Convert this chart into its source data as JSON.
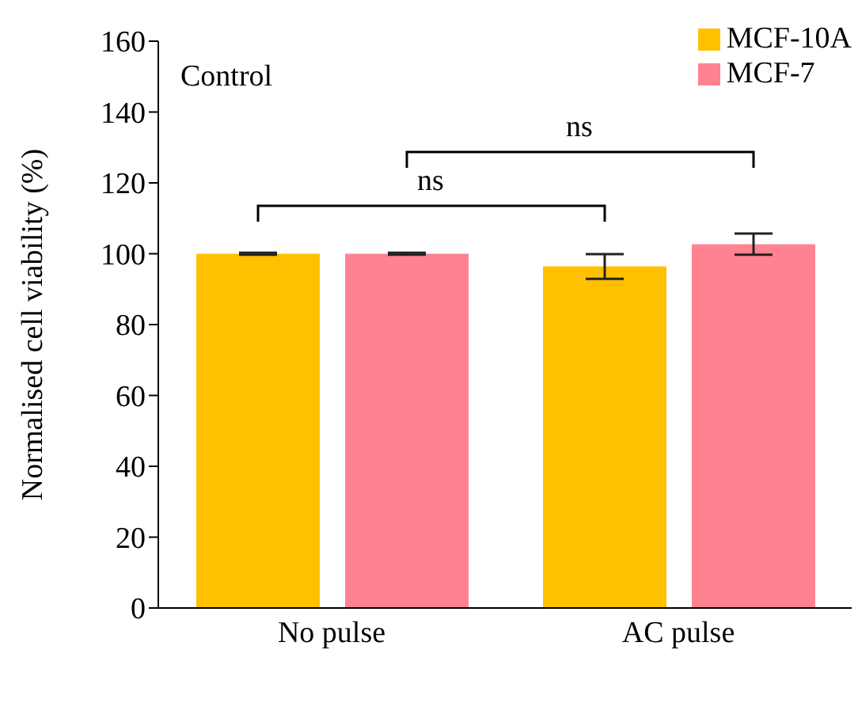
{
  "chart_data": {
    "type": "bar",
    "categories": [
      "No pulse",
      "AC pulse"
    ],
    "ylabel": "Normalised cell viability (%)",
    "ylim": [
      0,
      160
    ],
    "yticks": [
      0,
      20,
      40,
      60,
      80,
      100,
      120,
      140,
      160
    ],
    "legend": "top right",
    "annotations": [
      "Control",
      "ns",
      "ns"
    ],
    "series": [
      {
        "name": "MCF-10A",
        "color": "#ffc000",
        "values": [
          100,
          96.4
        ],
        "errors": [
          0.3,
          3.5
        ]
      },
      {
        "name": "MCF-7",
        "color": "#ff8290",
        "values": [
          100,
          102.7
        ],
        "errors": [
          0.3,
          3
        ]
      }
    ]
  }
}
